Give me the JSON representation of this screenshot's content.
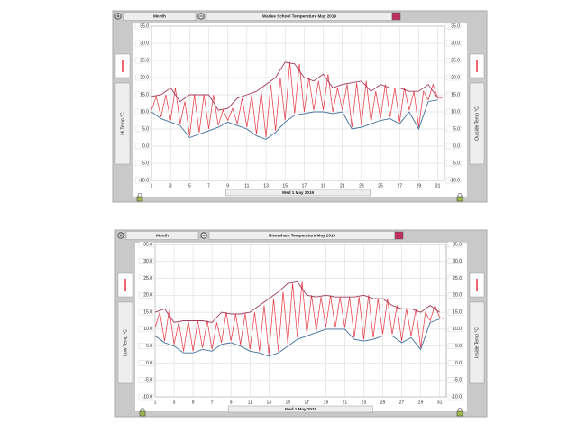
{
  "chart_data": [
    {
      "type": "line",
      "title": "Warlee School Temperature May 2019",
      "button": "Month",
      "x_label": "Wed 1 May 2019",
      "y_label": "Hi Temp °C",
      "y2_label": "Outside Temp °C",
      "xlim": [
        1,
        31.7
      ],
      "xticks": [
        1,
        3,
        5,
        7,
        9,
        11,
        13,
        15,
        17,
        19,
        21,
        23,
        25,
        27,
        29,
        31
      ],
      "ylim": [
        -10,
        35
      ],
      "yticks": [
        {
          "value": -10,
          "label": "-10.0"
        },
        {
          "value": -5,
          "label": "-5.0"
        },
        {
          "value": 0,
          "label": "0.0"
        },
        {
          "value": 5,
          "label": "5.0"
        },
        {
          "value": 10,
          "label": "10.0"
        },
        {
          "value": 15,
          "label": "15.0"
        },
        {
          "value": 20,
          "label": "20.0"
        },
        {
          "value": 25,
          "label": "25.0"
        },
        {
          "value": 30,
          "label": "30.0"
        },
        {
          "value": 35,
          "label": "35.0"
        }
      ],
      "grid": true,
      "x": [
        1,
        2,
        3,
        4,
        5,
        6,
        7,
        8,
        9,
        10,
        11,
        12,
        13,
        14,
        15,
        16,
        17,
        18,
        19,
        20,
        21,
        22,
        23,
        24,
        25,
        26,
        27,
        28,
        29,
        30,
        31
      ],
      "series": [
        {
          "color": "#3f6e9e",
          "values": [
            10,
            8,
            7,
            6,
            2.5,
            3.5,
            4.5,
            5.5,
            7,
            6,
            5,
            3,
            2,
            4,
            7,
            9,
            9.5,
            10,
            10,
            9.5,
            10,
            5,
            5.5,
            6.5,
            7.5,
            8,
            6.5,
            10,
            5,
            13,
            13.5
          ]
        },
        {
          "color": "#a33a5a",
          "values": [
            14.5,
            15,
            17,
            13,
            15,
            15,
            15,
            10.5,
            11,
            14,
            15,
            16,
            18,
            20,
            24.5,
            24,
            20,
            19,
            21,
            17,
            18,
            18.5,
            19,
            16,
            18,
            17,
            17,
            16,
            16,
            18,
            14
          ]
        },
        {
          "color": "#e8303c",
          "x": [
            1,
            1.5,
            2,
            2.5,
            3,
            3.5,
            4,
            4.5,
            5,
            5.5,
            6,
            6.5,
            7,
            7.5,
            8,
            8.5,
            9,
            9.5,
            10,
            10.5,
            11,
            11.5,
            12,
            12.5,
            13,
            13.5,
            14,
            14.5,
            15,
            15.5,
            16,
            16.5,
            17,
            17.5,
            18,
            18.5,
            19,
            19.5,
            20,
            20.5,
            21,
            21.5,
            22,
            22.5,
            23,
            23.5,
            24,
            24.5,
            25,
            25.5,
            26,
            26.5,
            27,
            27.5,
            28,
            28.5,
            29,
            29.5,
            30,
            30.5,
            31,
            31.5
          ],
          "values": [
            10.5,
            14.5,
            8.5,
            15,
            7.5,
            17,
            6.5,
            13,
            3,
            15,
            4,
            15,
            5,
            15,
            6,
            10.5,
            7.5,
            11,
            6.5,
            14,
            5.5,
            15,
            3.5,
            16,
            2.5,
            18,
            4.5,
            20,
            7.5,
            24.5,
            9.5,
            24,
            10,
            20,
            10.5,
            19,
            10.5,
            21,
            10,
            17,
            10.5,
            18,
            5.5,
            18.5,
            6,
            19,
            7,
            16,
            8,
            18,
            8.5,
            17,
            7,
            17,
            10.5,
            16,
            5.5,
            16,
            13.5,
            18,
            14,
            14
          ]
        }
      ]
    },
    {
      "type": "line",
      "title": "Riversham Temperature May 2019",
      "button": "Month",
      "x_label": "Wed 1 May 2019",
      "y_label": "Low Temp °C",
      "y2_label": "Inside Temp °C",
      "xlim": [
        1,
        31.7
      ],
      "xticks": [
        1,
        3,
        5,
        7,
        9,
        11,
        13,
        15,
        17,
        19,
        21,
        23,
        25,
        27,
        29,
        31
      ],
      "ylim": [
        -10,
        35
      ],
      "yticks": [
        {
          "value": -10,
          "label": "-10.0"
        },
        {
          "value": -5,
          "label": "-5.0"
        },
        {
          "value": 0,
          "label": "0.0"
        },
        {
          "value": 5,
          "label": "5.0"
        },
        {
          "value": 10,
          "label": "10.0"
        },
        {
          "value": 15,
          "label": "15.0"
        },
        {
          "value": 20,
          "label": "20.0"
        },
        {
          "value": 25,
          "label": "25.0"
        },
        {
          "value": 30,
          "label": "30.0"
        },
        {
          "value": 35,
          "label": "35.0"
        }
      ],
      "grid": true,
      "x": [
        1,
        2,
        3,
        4,
        5,
        6,
        7,
        8,
        9,
        10,
        11,
        12,
        13,
        14,
        15,
        16,
        17,
        18,
        19,
        20,
        21,
        22,
        23,
        24,
        25,
        26,
        27,
        28,
        29,
        30,
        31
      ],
      "series": [
        {
          "color": "#3f6e9e",
          "values": [
            8,
            6,
            5,
            3,
            3,
            4,
            3.5,
            5.5,
            6,
            5,
            3.5,
            3,
            2,
            3,
            5,
            7,
            8,
            9,
            10,
            10,
            10,
            7,
            6.5,
            7,
            8,
            8,
            6,
            7.5,
            4,
            12,
            13
          ]
        },
        {
          "color": "#a33a5a",
          "values": [
            15,
            16,
            12,
            12.5,
            12.5,
            12.5,
            12,
            15,
            14.5,
            14.5,
            15,
            17,
            19,
            21,
            23.5,
            24,
            20,
            19.5,
            20,
            19.5,
            19.5,
            19.5,
            20,
            19,
            19,
            17,
            16,
            16,
            15,
            17,
            15
          ]
        },
        {
          "color": "#e8303c",
          "x": [
            1,
            1.5,
            2,
            2.5,
            3,
            3.5,
            4,
            4.5,
            5,
            5.5,
            6,
            6.5,
            7,
            7.5,
            8,
            8.5,
            9,
            9.5,
            10,
            10.5,
            11,
            11.5,
            12,
            12.5,
            13,
            13.5,
            14,
            14.5,
            15,
            15.5,
            16,
            16.5,
            17,
            17.5,
            18,
            18.5,
            19,
            19.5,
            20,
            20.5,
            21,
            21.5,
            22,
            22.5,
            23,
            23.5,
            24,
            24.5,
            25,
            25.5,
            26,
            26.5,
            27,
            27.5,
            28,
            28.5,
            29,
            29.5,
            30,
            30.5,
            31,
            31.5
          ],
          "values": [
            10.5,
            15,
            6.5,
            16,
            5.5,
            12,
            3.5,
            12.5,
            3.5,
            12.5,
            4.5,
            12.5,
            4,
            12,
            6,
            15,
            6.5,
            14.5,
            5.5,
            14.5,
            4,
            15,
            3.5,
            17,
            2.5,
            19,
            3.5,
            21,
            5.5,
            23.5,
            7.5,
            24,
            8.5,
            20,
            9.5,
            19.5,
            10.5,
            20,
            10.5,
            19.5,
            10.5,
            19.5,
            7.5,
            19.5,
            7,
            20,
            7.5,
            19,
            8.5,
            19,
            8.5,
            17,
            6.5,
            16,
            8,
            16,
            4.5,
            15,
            12.5,
            17,
            13.5,
            13
          ]
        }
      ]
    }
  ]
}
